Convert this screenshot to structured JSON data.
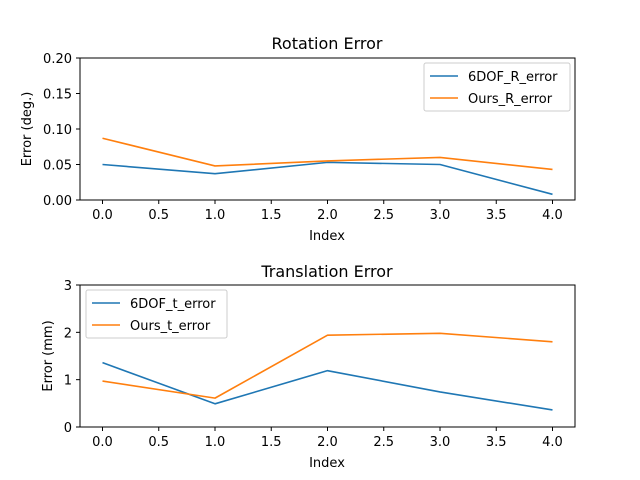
{
  "chart_data": [
    {
      "type": "line",
      "title": "Rotation Error",
      "xlabel": "Index",
      "ylabel": "Error (deg.)",
      "xlim": [
        -0.2,
        4.2
      ],
      "ylim": [
        0.0,
        0.2
      ],
      "x_ticks": [
        "0.0",
        "0.5",
        "1.0",
        "1.5",
        "2.0",
        "2.5",
        "3.0",
        "3.5",
        "4.0"
      ],
      "y_ticks": [
        "0.00",
        "0.05",
        "0.10",
        "0.15",
        "0.20"
      ],
      "grid": false,
      "legend_position": "top-right",
      "x": [
        0,
        1,
        2,
        3,
        4
      ],
      "series": [
        {
          "name": "6DOF_R_error",
          "color": "#1f77b4",
          "values": [
            0.05,
            0.037,
            0.053,
            0.05,
            0.008
          ]
        },
        {
          "name": "Ours_R_error",
          "color": "#ff7f0e",
          "values": [
            0.087,
            0.048,
            0.055,
            0.06,
            0.043
          ]
        }
      ]
    },
    {
      "type": "line",
      "title": "Translation Error",
      "xlabel": "Index",
      "ylabel": "Error (mm)",
      "xlim": [
        -0.2,
        4.2
      ],
      "ylim": [
        0,
        3
      ],
      "x_ticks": [
        "0.0",
        "0.5",
        "1.0",
        "1.5",
        "2.0",
        "2.5",
        "3.0",
        "3.5",
        "4.0"
      ],
      "y_ticks": [
        "0",
        "1",
        "2",
        "3"
      ],
      "grid": false,
      "legend_position": "top-left",
      "x": [
        0,
        1,
        2,
        3,
        4
      ],
      "series": [
        {
          "name": "6DOF_t_error",
          "color": "#1f77b4",
          "values": [
            1.36,
            0.49,
            1.19,
            0.74,
            0.36
          ]
        },
        {
          "name": "Ours_t_error",
          "color": "#ff7f0e",
          "values": [
            0.97,
            0.61,
            1.94,
            1.98,
            1.8
          ]
        }
      ]
    }
  ]
}
